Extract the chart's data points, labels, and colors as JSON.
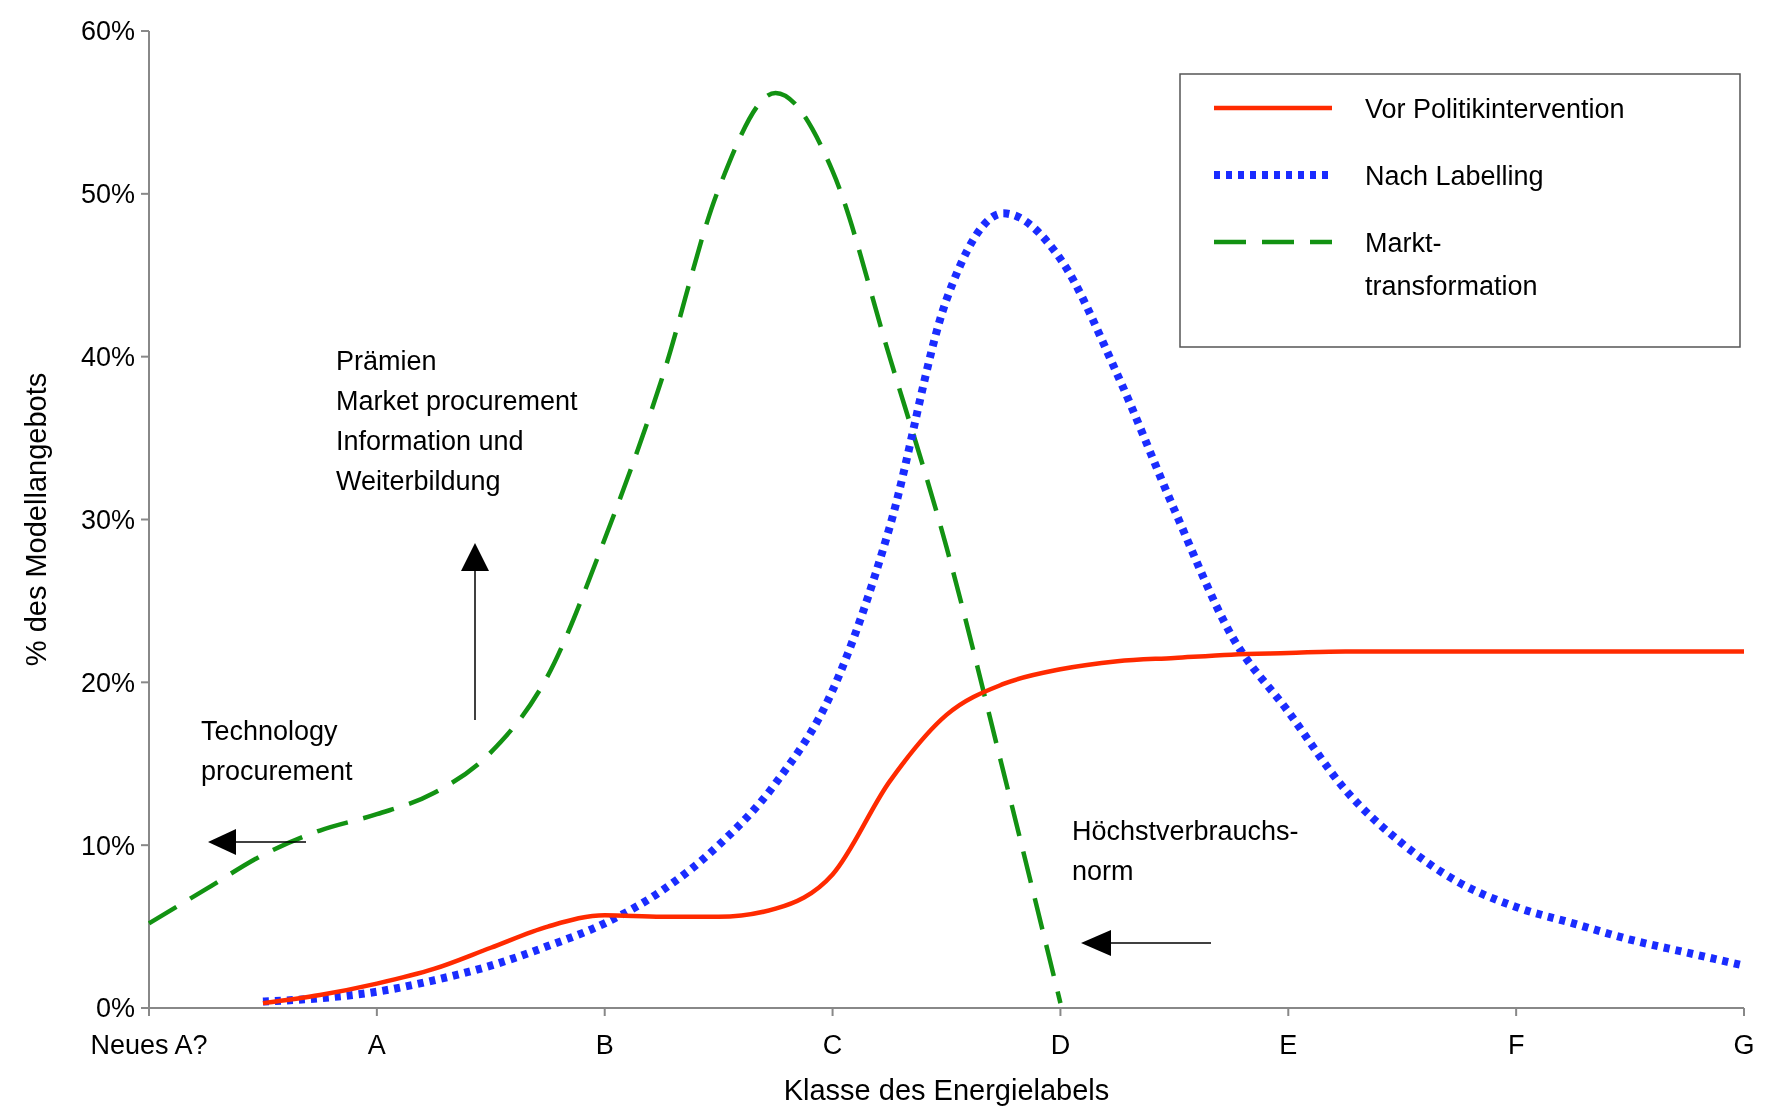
{
  "chart_data": {
    "type": "line",
    "xlabel": "Klasse des Energielabels",
    "ylabel": "% des Modellangebots",
    "categories": [
      "Neues A?",
      null,
      null,
      null,
      "A",
      null,
      null,
      null,
      "B",
      null,
      null,
      null,
      "C",
      null,
      null,
      null,
      "D",
      null,
      null,
      null,
      "E",
      null,
      null,
      null,
      "F",
      null,
      null,
      null,
      "G"
    ],
    "ylim": [
      0,
      60
    ],
    "yticks": [
      {
        "value": 0,
        "label": "0%"
      },
      {
        "value": 10,
        "label": "10%"
      },
      {
        "value": 20,
        "label": "20%"
      },
      {
        "value": 30,
        "label": "30%"
      },
      {
        "value": 40,
        "label": "40%"
      },
      {
        "value": 50,
        "label": "50%"
      },
      {
        "value": 60,
        "label": "60%"
      }
    ],
    "grid": false,
    "legend": "top right",
    "marker": "none",
    "series": [
      {
        "name": "Vor Politikintervention",
        "color": "#ff2a00",
        "line_style": "solid",
        "values": [
          null,
          null,
          0.3,
          0.8,
          1.5,
          2.4,
          3.7,
          5.0,
          5.7,
          5.6,
          5.6,
          6.1,
          8.2,
          13.9,
          18.0,
          19.9,
          20.8,
          21.3,
          21.5,
          21.7,
          21.8,
          21.9,
          21.9,
          21.9,
          21.9,
          21.9,
          21.9,
          21.9,
          21.9
        ]
      },
      {
        "name": "Nach Labelling",
        "color": "#1a2cff",
        "line_style": "dotted",
        "values": [
          null,
          null,
          0.4,
          0.6,
          1.0,
          1.7,
          2.6,
          3.8,
          5.2,
          7.2,
          10.0,
          13.8,
          19.5,
          29.5,
          43.5,
          48.8,
          46.0,
          38.9,
          30.6,
          22.9,
          18.2,
          13.4,
          10.1,
          7.7,
          6.2,
          5.2,
          4.2,
          3.4,
          2.6
        ]
      },
      {
        "name": "Markt-\ntransformation",
        "color": "#129212",
        "line_style": "dashed",
        "values": [
          5.2,
          7.3,
          9.4,
          10.9,
          11.9,
          13.2,
          15.7,
          20.4,
          28.8,
          38.6,
          50.3,
          56.2,
          51.4,
          40.0,
          28.3,
          14.5,
          0.3,
          null,
          null,
          null,
          null,
          null,
          null,
          null,
          null,
          null,
          null,
          null,
          null
        ]
      }
    ],
    "annotations": [
      "Prämien\nMarket procurement\nInformation und\nWeiterbildung",
      "Technology\nprocurement",
      "Höchstverbrauchs-\nnorm"
    ]
  }
}
